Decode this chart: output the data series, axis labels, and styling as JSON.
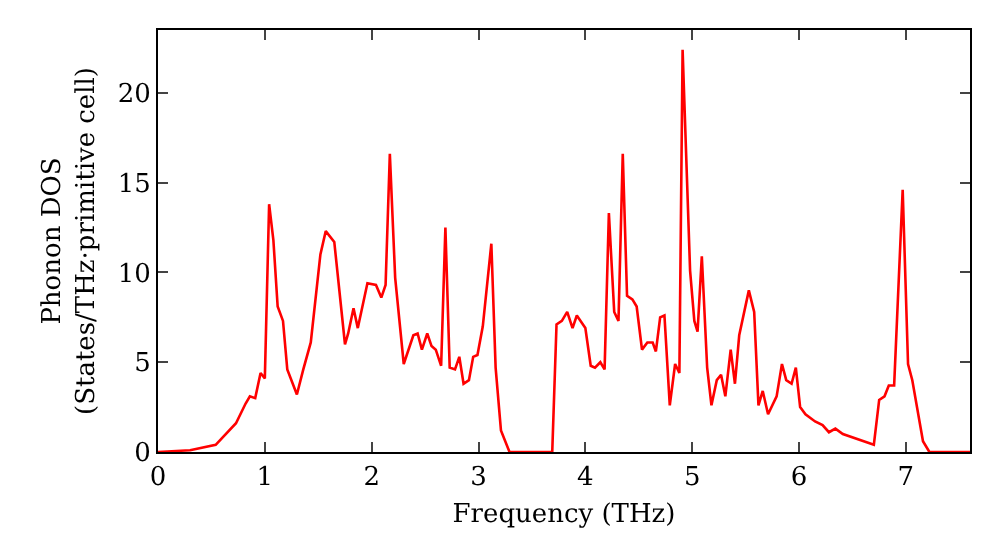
{
  "chart_data": {
    "type": "line",
    "xlabel": "Frequency (THz)",
    "ylabel": "Phonon DOS\n(States/THz·primitive cell)",
    "xlim": [
      0,
      7.6
    ],
    "ylim": [
      0,
      23.5
    ],
    "xticks": [
      0,
      1,
      2,
      3,
      4,
      5,
      6,
      7
    ],
    "yticks": [
      0,
      5,
      10,
      15,
      20
    ],
    "grid": false,
    "marker": "none",
    "line_style": "solid",
    "series": [
      {
        "color": "#ff0000",
        "x": [
          0,
          0.3,
          0.54,
          0.73,
          0.82,
          0.86,
          0.91,
          0.96,
          1.0,
          1.04,
          1.08,
          1.12,
          1.17,
          1.21,
          1.3,
          1.36,
          1.43,
          1.52,
          1.57,
          1.65,
          1.75,
          1.78,
          1.83,
          1.87,
          1.96,
          2.04,
          2.09,
          2.13,
          2.17,
          2.22,
          2.3,
          2.39,
          2.43,
          2.47,
          2.52,
          2.56,
          2.6,
          2.65,
          2.69,
          2.73,
          2.78,
          2.82,
          2.86,
          2.91,
          2.95,
          2.99,
          3.04,
          3.12,
          3.16,
          3.21,
          3.29,
          3.69,
          3.73,
          3.78,
          3.83,
          3.88,
          3.92,
          4.0,
          4.05,
          4.09,
          4.14,
          4.18,
          4.22,
          4.27,
          4.31,
          4.35,
          4.39,
          4.44,
          4.48,
          4.53,
          4.58,
          4.63,
          4.66,
          4.7,
          4.74,
          4.79,
          4.84,
          4.88,
          4.91,
          4.98,
          5.02,
          5.05,
          5.09,
          5.14,
          5.18,
          5.23,
          5.27,
          5.31,
          5.36,
          5.4,
          5.44,
          5.53,
          5.58,
          5.62,
          5.66,
          5.71,
          5.79,
          5.84,
          5.88,
          5.93,
          5.97,
          6.01,
          6.06,
          6.15,
          6.22,
          6.28,
          6.34,
          6.41,
          6.7,
          6.75,
          6.8,
          6.84,
          6.89,
          6.97,
          7.02,
          7.06,
          7.16,
          7.22,
          7.6
        ],
        "values": [
          0,
          0.1,
          0.4,
          1.6,
          2.7,
          3.1,
          3.0,
          4.4,
          4.1,
          13.8,
          11.8,
          8.1,
          7.3,
          4.6,
          3.2,
          4.6,
          6.1,
          11.0,
          12.3,
          11.7,
          6.0,
          6.6,
          8.0,
          6.9,
          9.4,
          9.3,
          8.6,
          9.3,
          16.6,
          9.7,
          4.9,
          6.5,
          6.6,
          5.7,
          6.6,
          5.9,
          5.7,
          4.8,
          12.5,
          4.7,
          4.6,
          5.3,
          3.8,
          4.0,
          5.3,
          5.4,
          7.0,
          11.6,
          4.7,
          1.2,
          0,
          0,
          7.1,
          7.3,
          7.8,
          6.9,
          7.6,
          6.9,
          4.8,
          4.7,
          5.0,
          4.6,
          13.3,
          7.8,
          7.3,
          16.6,
          8.7,
          8.5,
          8.1,
          5.7,
          6.1,
          6.1,
          5.6,
          7.5,
          7.6,
          2.6,
          4.9,
          4.4,
          22.4,
          10.1,
          7.3,
          6.7,
          10.9,
          4.7,
          2.6,
          4.0,
          4.3,
          3.1,
          5.7,
          3.8,
          6.5,
          9.0,
          7.8,
          2.6,
          3.4,
          2.1,
          3.1,
          4.9,
          4.0,
          3.8,
          4.7,
          2.5,
          2.1,
          1.7,
          1.5,
          1.1,
          1.3,
          1.0,
          0.4,
          2.9,
          3.1,
          3.7,
          3.7,
          14.6,
          4.9,
          4.0,
          0.6,
          0,
          0
        ]
      }
    ]
  }
}
